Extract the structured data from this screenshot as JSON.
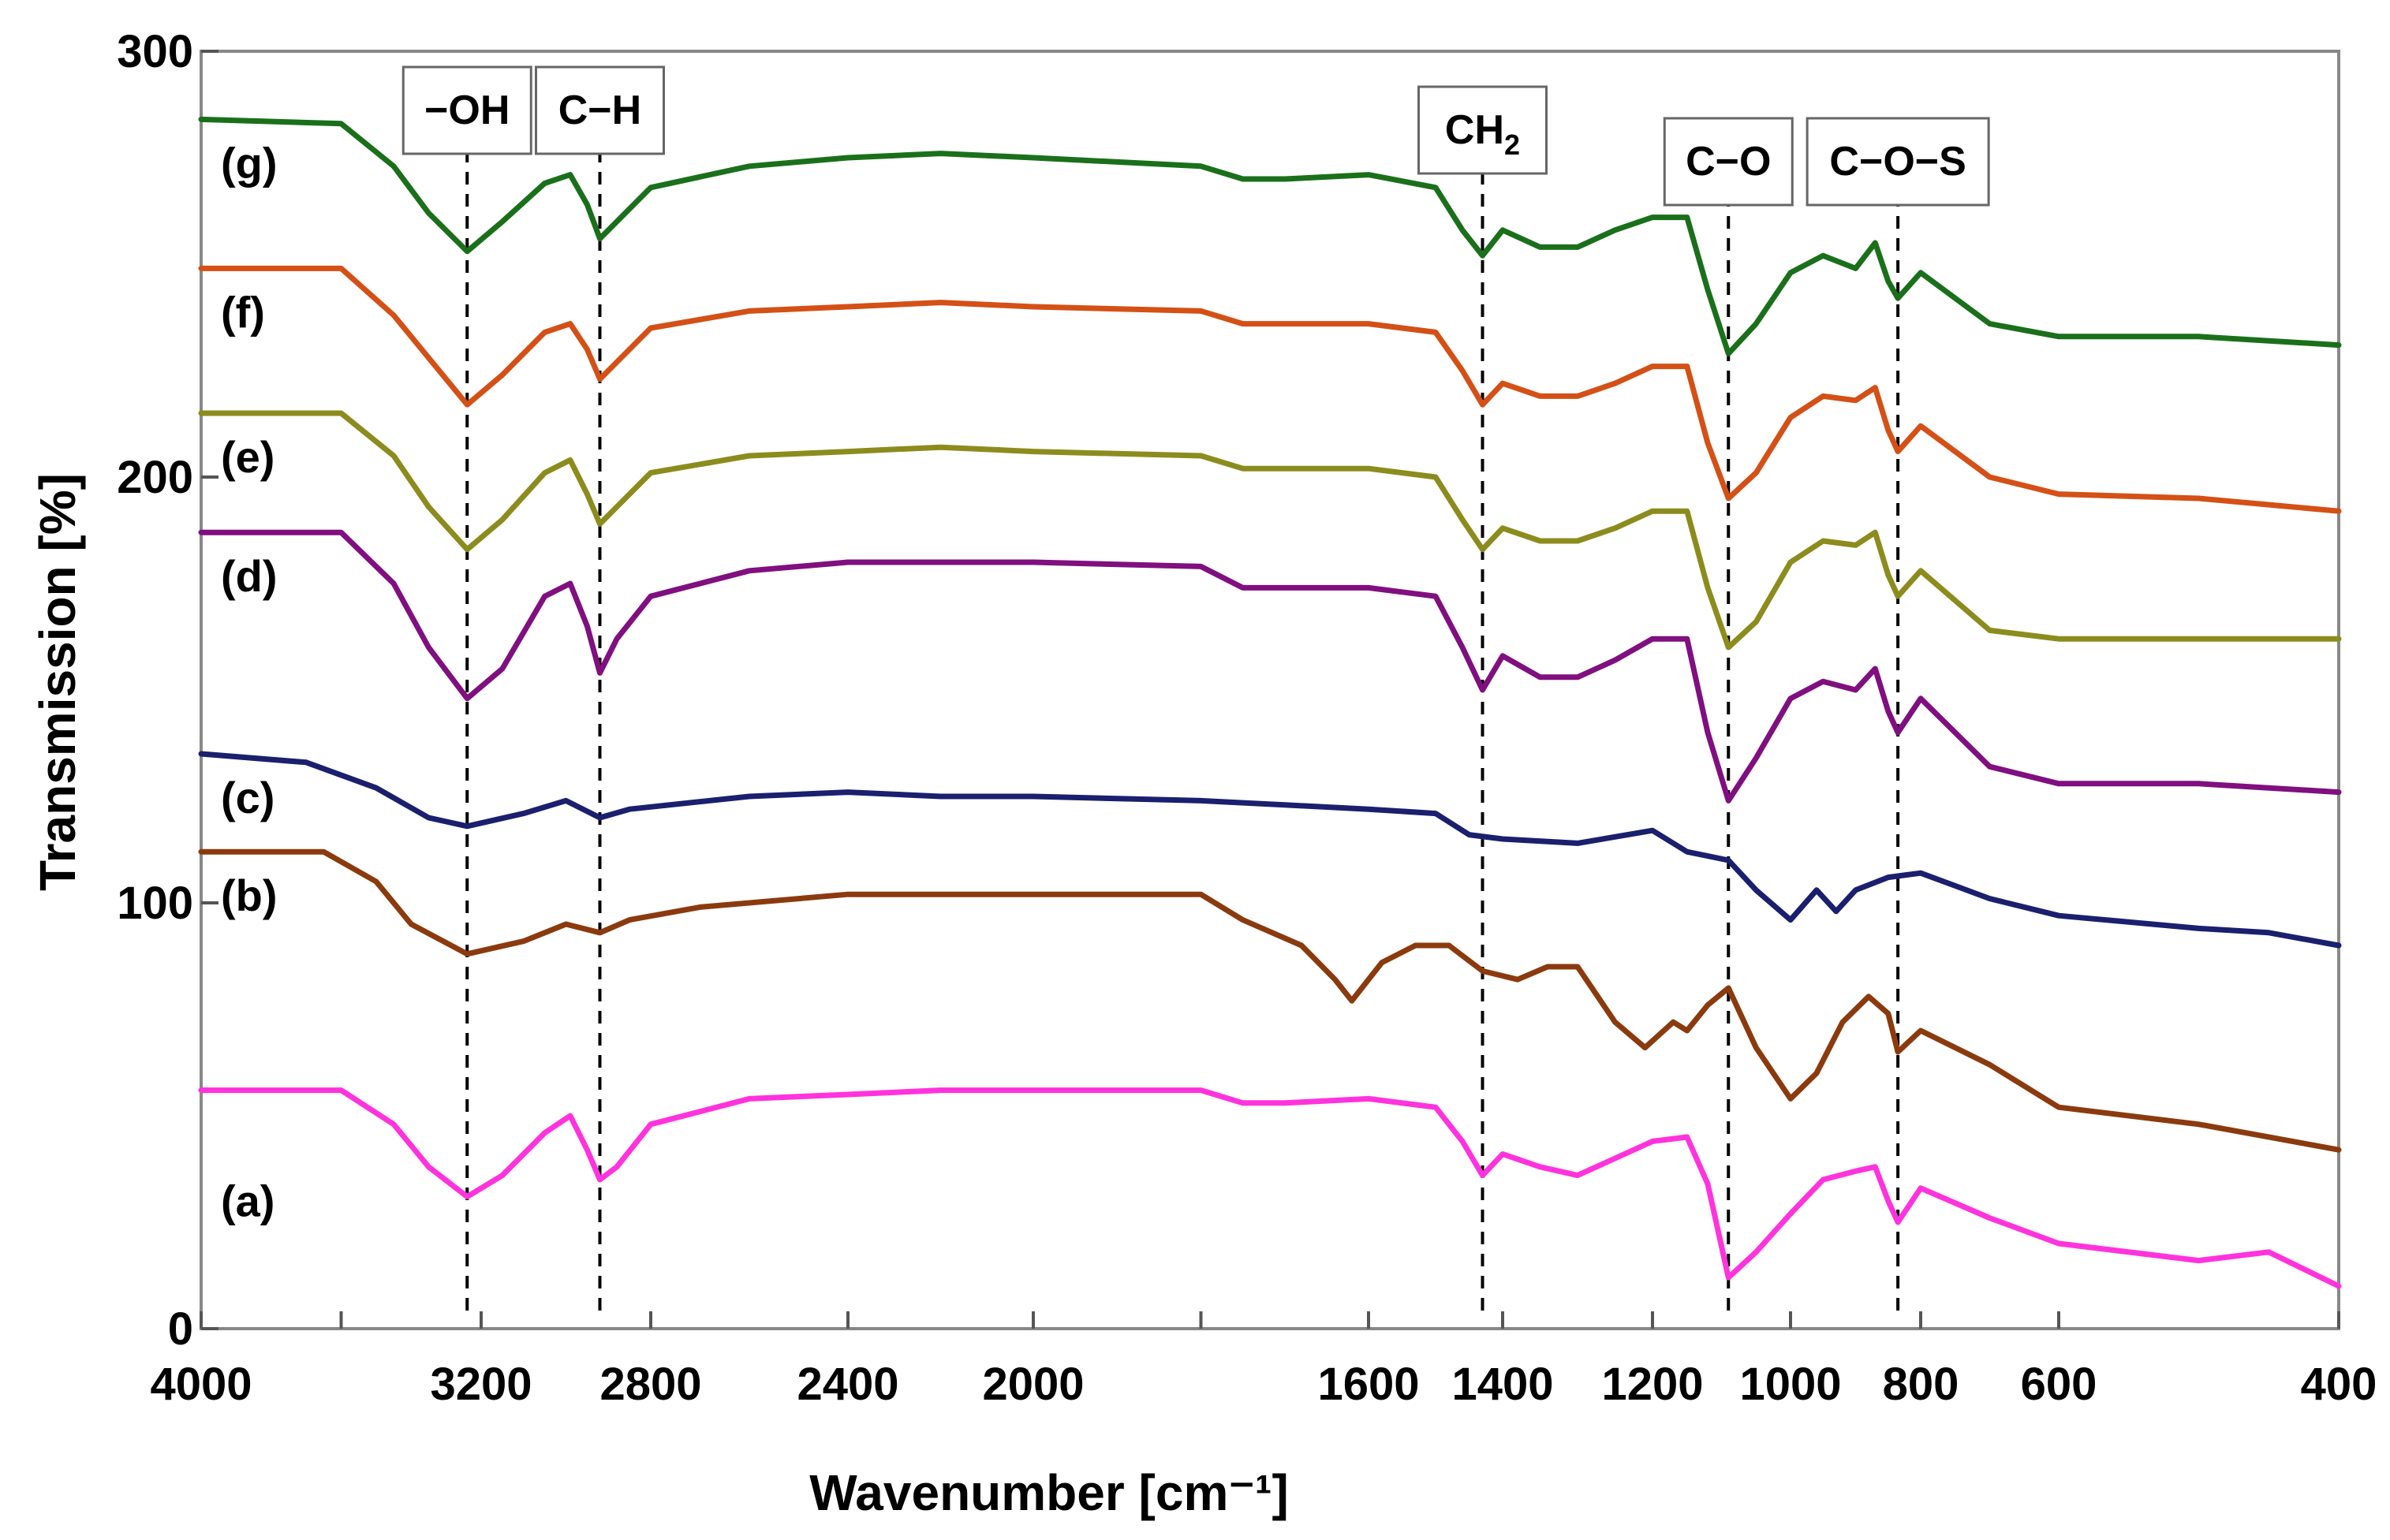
{
  "chart_data": {
    "type": "line",
    "xlabel": "Wavenumber [cm⁻¹]",
    "ylabel": "Transmission [%]",
    "xlim": [
      4000,
      400
    ],
    "ylim": [
      0,
      300
    ],
    "x_ticks": [
      4000,
      3200,
      2800,
      2400,
      2000,
      1600,
      1400,
      1200,
      1000,
      800,
      600,
      400
    ],
    "y_ticks": [
      0,
      100,
      200,
      300
    ],
    "colors": {
      "a": "#ff33dd",
      "b": "#8b3a0e",
      "c": "#1a1f6e",
      "d": "#800f80",
      "e": "#8c8c1e",
      "f": "#d45016",
      "g": "#1a701a"
    },
    "annotations": [
      {
        "label": "−OH",
        "x": 3240
      },
      {
        "label": "C−H",
        "x": 2920
      },
      {
        "label": "CH",
        "sub": "2",
        "x": 1430
      },
      {
        "label": "C−O",
        "x": 1090
      },
      {
        "label": "C−O−S",
        "x": 835
      }
    ],
    "series": [
      {
        "name": "(a)",
        "key": "a",
        "points": [
          [
            4000,
            56
          ],
          [
            3600,
            56
          ],
          [
            3450,
            48
          ],
          [
            3350,
            38
          ],
          [
            3240,
            31
          ],
          [
            3150,
            36
          ],
          [
            3050,
            46
          ],
          [
            2990,
            50
          ],
          [
            2950,
            42
          ],
          [
            2920,
            35
          ],
          [
            2880,
            38
          ],
          [
            2800,
            48
          ],
          [
            2600,
            54
          ],
          [
            2400,
            55
          ],
          [
            2200,
            56
          ],
          [
            2000,
            56
          ],
          [
            1800,
            56
          ],
          [
            1750,
            53
          ],
          [
            1700,
            53
          ],
          [
            1600,
            54
          ],
          [
            1500,
            52
          ],
          [
            1460,
            44
          ],
          [
            1430,
            36
          ],
          [
            1400,
            41
          ],
          [
            1350,
            38
          ],
          [
            1300,
            36
          ],
          [
            1250,
            40
          ],
          [
            1200,
            44
          ],
          [
            1150,
            45
          ],
          [
            1120,
            34
          ],
          [
            1090,
            12
          ],
          [
            1050,
            18
          ],
          [
            1000,
            27
          ],
          [
            950,
            35
          ],
          [
            900,
            37
          ],
          [
            870,
            38
          ],
          [
            850,
            30
          ],
          [
            835,
            25
          ],
          [
            800,
            33
          ],
          [
            700,
            26
          ],
          [
            600,
            20
          ],
          [
            500,
            16
          ],
          [
            450,
            18
          ],
          [
            400,
            10
          ]
        ]
      },
      {
        "name": "(b)",
        "key": "b",
        "points": [
          [
            4000,
            112
          ],
          [
            3650,
            112
          ],
          [
            3500,
            105
          ],
          [
            3400,
            95
          ],
          [
            3240,
            88
          ],
          [
            3100,
            91
          ],
          [
            3000,
            95
          ],
          [
            2920,
            93
          ],
          [
            2850,
            96
          ],
          [
            2700,
            99
          ],
          [
            2400,
            102
          ],
          [
            2200,
            102
          ],
          [
            2000,
            102
          ],
          [
            1800,
            102
          ],
          [
            1750,
            96
          ],
          [
            1680,
            90
          ],
          [
            1640,
            82
          ],
          [
            1620,
            77
          ],
          [
            1580,
            86
          ],
          [
            1530,
            90
          ],
          [
            1480,
            90
          ],
          [
            1430,
            84
          ],
          [
            1380,
            82
          ],
          [
            1340,
            85
          ],
          [
            1300,
            85
          ],
          [
            1250,
            72
          ],
          [
            1210,
            66
          ],
          [
            1170,
            72
          ],
          [
            1150,
            70
          ],
          [
            1120,
            76
          ],
          [
            1090,
            80
          ],
          [
            1050,
            66
          ],
          [
            1000,
            54
          ],
          [
            960,
            60
          ],
          [
            920,
            72
          ],
          [
            880,
            78
          ],
          [
            850,
            74
          ],
          [
            835,
            65
          ],
          [
            800,
            70
          ],
          [
            700,
            62
          ],
          [
            600,
            52
          ],
          [
            500,
            48
          ],
          [
            400,
            42
          ]
        ]
      },
      {
        "name": "(c)",
        "key": "c",
        "points": [
          [
            4000,
            135
          ],
          [
            3700,
            133
          ],
          [
            3500,
            127
          ],
          [
            3350,
            120
          ],
          [
            3240,
            118
          ],
          [
            3100,
            121
          ],
          [
            3000,
            124
          ],
          [
            2920,
            120
          ],
          [
            2850,
            122
          ],
          [
            2600,
            125
          ],
          [
            2400,
            126
          ],
          [
            2200,
            125
          ],
          [
            2000,
            125
          ],
          [
            1800,
            124
          ],
          [
            1700,
            123
          ],
          [
            1600,
            122
          ],
          [
            1500,
            121
          ],
          [
            1450,
            116
          ],
          [
            1400,
            115
          ],
          [
            1300,
            114
          ],
          [
            1200,
            117
          ],
          [
            1150,
            112
          ],
          [
            1120,
            111
          ],
          [
            1090,
            110
          ],
          [
            1050,
            103
          ],
          [
            1000,
            96
          ],
          [
            960,
            103
          ],
          [
            930,
            98
          ],
          [
            900,
            103
          ],
          [
            850,
            106
          ],
          [
            800,
            107
          ],
          [
            750,
            104
          ],
          [
            700,
            101
          ],
          [
            600,
            97
          ],
          [
            500,
            94
          ],
          [
            450,
            93
          ],
          [
            400,
            90
          ]
        ]
      },
      {
        "name": "(d)",
        "key": "d",
        "points": [
          [
            4000,
            187
          ],
          [
            3600,
            187
          ],
          [
            3450,
            175
          ],
          [
            3350,
            160
          ],
          [
            3240,
            148
          ],
          [
            3150,
            155
          ],
          [
            3050,
            172
          ],
          [
            2990,
            175
          ],
          [
            2950,
            165
          ],
          [
            2920,
            154
          ],
          [
            2880,
            162
          ],
          [
            2800,
            172
          ],
          [
            2600,
            178
          ],
          [
            2400,
            180
          ],
          [
            2200,
            180
          ],
          [
            2000,
            180
          ],
          [
            1800,
            179
          ],
          [
            1750,
            174
          ],
          [
            1700,
            174
          ],
          [
            1600,
            174
          ],
          [
            1500,
            172
          ],
          [
            1460,
            160
          ],
          [
            1430,
            150
          ],
          [
            1400,
            158
          ],
          [
            1350,
            153
          ],
          [
            1300,
            153
          ],
          [
            1250,
            157
          ],
          [
            1200,
            162
          ],
          [
            1150,
            162
          ],
          [
            1120,
            140
          ],
          [
            1090,
            124
          ],
          [
            1050,
            134
          ],
          [
            1000,
            148
          ],
          [
            950,
            152
          ],
          [
            900,
            150
          ],
          [
            870,
            155
          ],
          [
            850,
            145
          ],
          [
            835,
            140
          ],
          [
            800,
            148
          ],
          [
            700,
            132
          ],
          [
            600,
            128
          ],
          [
            500,
            128
          ],
          [
            400,
            126
          ]
        ]
      },
      {
        "name": "(e)",
        "key": "e",
        "points": [
          [
            4000,
            215
          ],
          [
            3600,
            215
          ],
          [
            3450,
            205
          ],
          [
            3350,
            193
          ],
          [
            3240,
            183
          ],
          [
            3150,
            190
          ],
          [
            3050,
            201
          ],
          [
            2990,
            204
          ],
          [
            2950,
            196
          ],
          [
            2920,
            189
          ],
          [
            2880,
            193
          ],
          [
            2800,
            201
          ],
          [
            2600,
            205
          ],
          [
            2400,
            206
          ],
          [
            2200,
            207
          ],
          [
            2000,
            206
          ],
          [
            1800,
            205
          ],
          [
            1750,
            202
          ],
          [
            1700,
            202
          ],
          [
            1600,
            202
          ],
          [
            1500,
            200
          ],
          [
            1460,
            190
          ],
          [
            1430,
            183
          ],
          [
            1400,
            188
          ],
          [
            1350,
            185
          ],
          [
            1300,
            185
          ],
          [
            1250,
            188
          ],
          [
            1200,
            192
          ],
          [
            1150,
            192
          ],
          [
            1120,
            174
          ],
          [
            1090,
            160
          ],
          [
            1050,
            166
          ],
          [
            1000,
            180
          ],
          [
            950,
            185
          ],
          [
            900,
            184
          ],
          [
            870,
            187
          ],
          [
            850,
            177
          ],
          [
            835,
            172
          ],
          [
            800,
            178
          ],
          [
            700,
            164
          ],
          [
            600,
            162
          ],
          [
            500,
            162
          ],
          [
            400,
            162
          ]
        ]
      },
      {
        "name": "(f)",
        "key": "f",
        "points": [
          [
            4000,
            249
          ],
          [
            3600,
            249
          ],
          [
            3450,
            238
          ],
          [
            3350,
            228
          ],
          [
            3240,
            217
          ],
          [
            3150,
            224
          ],
          [
            3050,
            234
          ],
          [
            2990,
            236
          ],
          [
            2950,
            230
          ],
          [
            2920,
            223
          ],
          [
            2880,
            227
          ],
          [
            2800,
            235
          ],
          [
            2600,
            239
          ],
          [
            2400,
            240
          ],
          [
            2200,
            241
          ],
          [
            2000,
            240
          ],
          [
            1800,
            239
          ],
          [
            1750,
            236
          ],
          [
            1700,
            236
          ],
          [
            1600,
            236
          ],
          [
            1500,
            234
          ],
          [
            1460,
            225
          ],
          [
            1430,
            217
          ],
          [
            1400,
            222
          ],
          [
            1350,
            219
          ],
          [
            1300,
            219
          ],
          [
            1250,
            222
          ],
          [
            1200,
            226
          ],
          [
            1150,
            226
          ],
          [
            1120,
            208
          ],
          [
            1090,
            195
          ],
          [
            1050,
            201
          ],
          [
            1000,
            214
          ],
          [
            950,
            219
          ],
          [
            900,
            218
          ],
          [
            870,
            221
          ],
          [
            850,
            211
          ],
          [
            835,
            206
          ],
          [
            800,
            212
          ],
          [
            700,
            200
          ],
          [
            600,
            196
          ],
          [
            500,
            195
          ],
          [
            400,
            192
          ]
        ]
      },
      {
        "name": "(g)",
        "key": "g",
        "points": [
          [
            4000,
            284
          ],
          [
            3600,
            283
          ],
          [
            3450,
            273
          ],
          [
            3350,
            262
          ],
          [
            3240,
            253
          ],
          [
            3150,
            260
          ],
          [
            3050,
            269
          ],
          [
            2990,
            271
          ],
          [
            2950,
            264
          ],
          [
            2920,
            256
          ],
          [
            2880,
            260
          ],
          [
            2800,
            268
          ],
          [
            2600,
            273
          ],
          [
            2400,
            275
          ],
          [
            2200,
            276
          ],
          [
            2000,
            275
          ],
          [
            1800,
            273
          ],
          [
            1750,
            270
          ],
          [
            1700,
            270
          ],
          [
            1600,
            271
          ],
          [
            1500,
            268
          ],
          [
            1460,
            258
          ],
          [
            1430,
            252
          ],
          [
            1400,
            258
          ],
          [
            1350,
            254
          ],
          [
            1300,
            254
          ],
          [
            1250,
            258
          ],
          [
            1200,
            261
          ],
          [
            1150,
            261
          ],
          [
            1120,
            244
          ],
          [
            1090,
            229
          ],
          [
            1050,
            236
          ],
          [
            1000,
            248
          ],
          [
            950,
            252
          ],
          [
            900,
            249
          ],
          [
            870,
            255
          ],
          [
            850,
            246
          ],
          [
            835,
            242
          ],
          [
            800,
            248
          ],
          [
            700,
            236
          ],
          [
            600,
            233
          ],
          [
            500,
            233
          ],
          [
            400,
            231
          ]
        ]
      }
    ]
  }
}
